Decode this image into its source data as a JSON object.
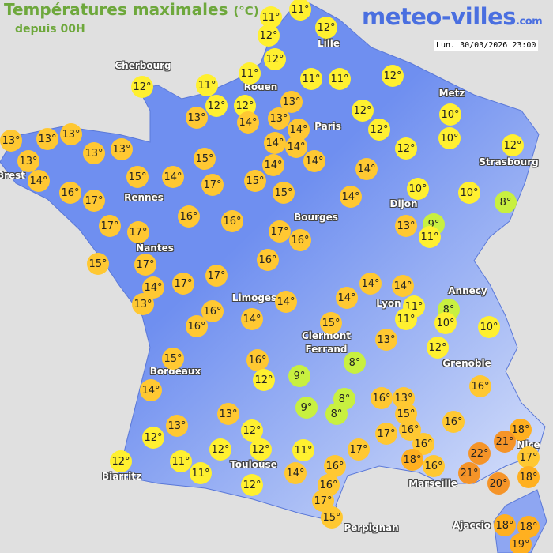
{
  "header": {
    "title": "Températures maximales",
    "unit": "(°C)",
    "subtitle": "depuis 00H"
  },
  "logo": {
    "name": "meteo-villes",
    ".com": ".com",
    "domain": ".com"
  },
  "timestamp": "Lun. 30/03/2026 23:00",
  "colors": {
    "land": "#6f8ff0",
    "sea": "#e0e0e0",
    "cold": "#c8f040",
    "mild": "#fff030",
    "warm": "#ffc832",
    "hot": "#ffb020",
    "veryhot": "#f59428"
  },
  "cities": [
    "Cherbourg",
    "Rouen",
    "Lille",
    "Metz",
    "Strasbourg",
    "Brest",
    "Rennes",
    "Paris",
    "Dijon",
    "Nantes",
    "Bourges",
    "Limoges",
    "Lyon",
    "Annecy",
    "Clermont",
    "Ferrand",
    "Grenoble",
    "Bordeaux",
    "Toulouse",
    "Biarritz",
    "Marseille",
    "Nice",
    "Perpignan",
    "Ajaccio"
  ],
  "temperatures": [
    11,
    11,
    12,
    12,
    12,
    12,
    11,
    11,
    11,
    12,
    11,
    12,
    12,
    13,
    13,
    14,
    13,
    12,
    14,
    12,
    10,
    10,
    13,
    13,
    13,
    13,
    13,
    13,
    14,
    14,
    14,
    12,
    12,
    15,
    14,
    14,
    15,
    14,
    17,
    15,
    14,
    16,
    17,
    15,
    10,
    14,
    10,
    8,
    16,
    16,
    17,
    17,
    17,
    16,
    13,
    9,
    11,
    15,
    17,
    16,
    14,
    17,
    17,
    13,
    14,
    14,
    14,
    14,
    11,
    8,
    11,
    10,
    10,
    16,
    16,
    14,
    15,
    13,
    12,
    15,
    16,
    12,
    9,
    8,
    16,
    14,
    13,
    8,
    9,
    8,
    16,
    13,
    13,
    12,
    15,
    16,
    18,
    17,
    16,
    21,
    12,
    12,
    12,
    11,
    17,
    16,
    18,
    22,
    17,
    12,
    11,
    16,
    16,
    21,
    18,
    11,
    14,
    20,
    12,
    16,
    17,
    15,
    18,
    18,
    19
  ]
}
